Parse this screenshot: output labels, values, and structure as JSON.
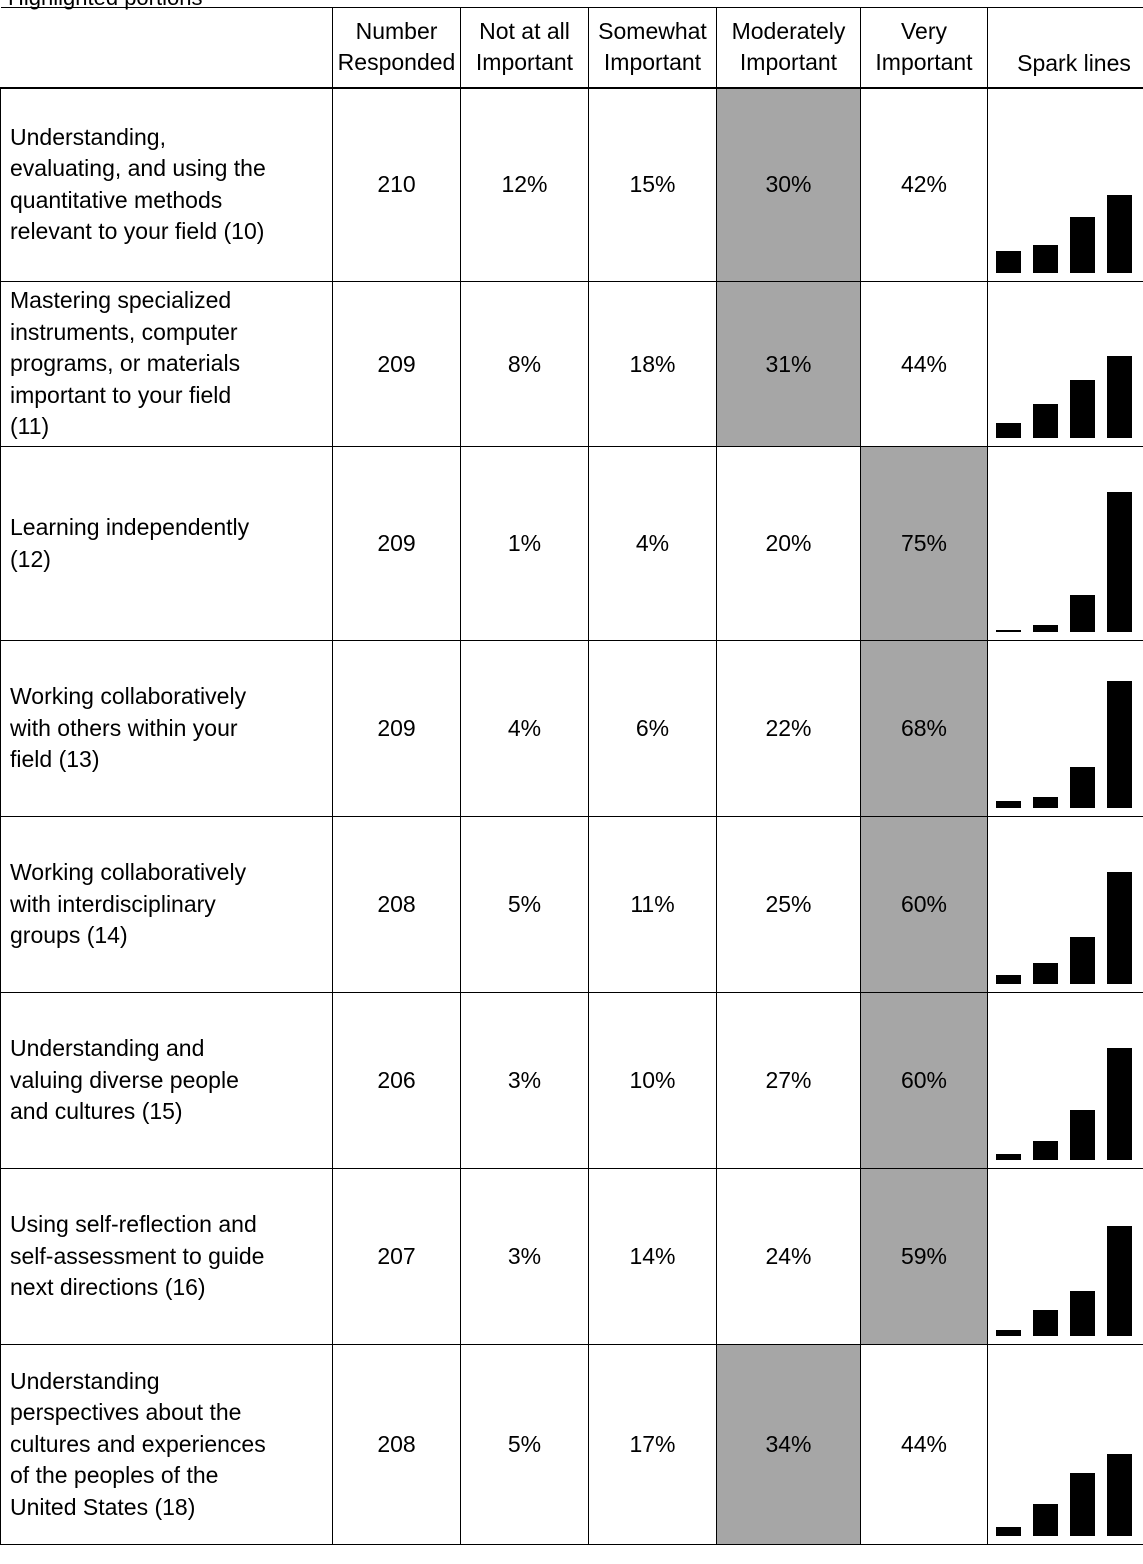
{
  "top_text": "Highlighted portions",
  "table": {
    "headers": [
      "",
      "Number Responded",
      "Not at all Important",
      "Somewhat Important",
      "Moderately Important",
      "Very Important",
      "Spark lines"
    ],
    "header_lines": {
      "number": [
        "Number",
        "Responded"
      ],
      "not_at_all": [
        "Not at all",
        "Important"
      ],
      "somewhat": [
        "Somewhat",
        "Important"
      ],
      "moderately": [
        "Moderately",
        "Important"
      ],
      "very": [
        "Very",
        "Important"
      ],
      "spark": [
        "Spark lines"
      ]
    },
    "rows": [
      {
        "item_lines": [
          "Understanding,",
          "evaluating, and using the",
          "quantitative methods",
          "relevant to your field (10)"
        ],
        "responded": "210",
        "not_at_all": "12%",
        "somewhat": "15%",
        "moderately": "30%",
        "very": "42%",
        "highlight": "moderately",
        "spark": [
          12,
          15,
          30,
          42
        ]
      },
      {
        "item_lines": [
          "Mastering specialized",
          "instruments, computer",
          "programs, or materials",
          "important to your field",
          "(11)"
        ],
        "responded": "209",
        "not_at_all": "8%",
        "somewhat": "18%",
        "moderately": "31%",
        "very": "44%",
        "highlight": "moderately",
        "spark": [
          8,
          18,
          31,
          44
        ]
      },
      {
        "item_lines": [
          "Learning independently",
          "(12)"
        ],
        "responded": "209",
        "not_at_all": "1%",
        "somewhat": "4%",
        "moderately": "20%",
        "very": "75%",
        "highlight": "very",
        "spark": [
          1,
          4,
          20,
          75
        ]
      },
      {
        "item_lines": [
          "Working collaboratively",
          "with others within your",
          "field (13)"
        ],
        "responded": "209",
        "not_at_all": "4%",
        "somewhat": "6%",
        "moderately": "22%",
        "very": "68%",
        "highlight": "very",
        "spark": [
          4,
          6,
          22,
          68
        ]
      },
      {
        "item_lines": [
          "Working collaboratively",
          "with interdisciplinary",
          "groups (14)"
        ],
        "responded": "208",
        "not_at_all": "5%",
        "somewhat": "11%",
        "moderately": "25%",
        "very": "60%",
        "highlight": "very",
        "spark": [
          5,
          11,
          25,
          60
        ]
      },
      {
        "item_lines": [
          "Understanding and",
          "valuing diverse people",
          "and cultures (15)"
        ],
        "responded": "206",
        "not_at_all": "3%",
        "somewhat": "10%",
        "moderately": "27%",
        "very": "60%",
        "highlight": "very",
        "spark": [
          3,
          10,
          27,
          60
        ]
      },
      {
        "item_lines": [
          "Using self-reflection and",
          "self-assessment to guide",
          "next directions (16)"
        ],
        "responded": "207",
        "not_at_all": "3%",
        "somewhat": "14%",
        "moderately": "24%",
        "very": "59%",
        "highlight": "very",
        "spark": [
          3,
          14,
          24,
          59
        ]
      },
      {
        "item_lines": [
          "Understanding",
          "perspectives about the",
          "cultures and experiences",
          "of the peoples of the",
          "United States (18)"
        ],
        "responded": "208",
        "not_at_all": "5%",
        "somewhat": "17%",
        "moderately": "34%",
        "very": "44%",
        "highlight": "moderately",
        "spark": [
          5,
          17,
          34,
          44
        ]
      }
    ]
  },
  "colors": {
    "highlight_fill": "#a6a6a6",
    "spark_bar": "#000000",
    "border": "#000000"
  }
}
